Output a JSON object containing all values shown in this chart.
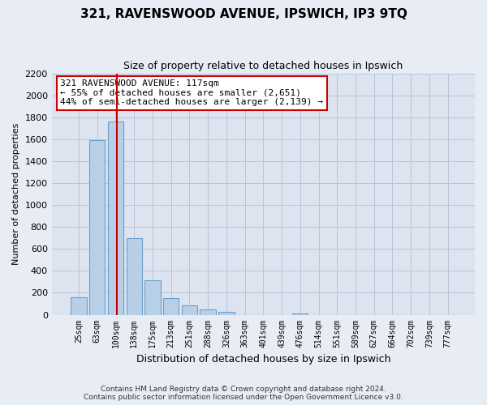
{
  "title": "321, RAVENSWOOD AVENUE, IPSWICH, IP3 9TQ",
  "subtitle": "Size of property relative to detached houses in Ipswich",
  "xlabel": "Distribution of detached houses by size in Ipswich",
  "ylabel": "Number of detached properties",
  "bar_labels": [
    "25sqm",
    "63sqm",
    "100sqm",
    "138sqm",
    "175sqm",
    "213sqm",
    "251sqm",
    "288sqm",
    "326sqm",
    "363sqm",
    "401sqm",
    "439sqm",
    "476sqm",
    "514sqm",
    "551sqm",
    "589sqm",
    "627sqm",
    "664sqm",
    "702sqm",
    "739sqm",
    "777sqm"
  ],
  "bar_values": [
    160,
    1590,
    1760,
    700,
    315,
    155,
    85,
    50,
    25,
    0,
    0,
    0,
    15,
    0,
    0,
    0,
    0,
    0,
    0,
    0,
    0
  ],
  "bar_color": "#b8cfe8",
  "bar_edge_color": "#6a9fcb",
  "vline_x_index": 2.075,
  "vline_color": "#cc0000",
  "annotation_text": "321 RAVENSWOOD AVENUE: 117sqm\n← 55% of detached houses are smaller (2,651)\n44% of semi-detached houses are larger (2,139) →",
  "annotation_box_color": "white",
  "annotation_box_edge": "#cc0000",
  "ylim": [
    0,
    2200
  ],
  "yticks": [
    0,
    200,
    400,
    600,
    800,
    1000,
    1200,
    1400,
    1600,
    1800,
    2000,
    2200
  ],
  "footnote": "Contains HM Land Registry data © Crown copyright and database right 2024.\nContains public sector information licensed under the Open Government Licence v3.0.",
  "bg_color": "#e8ecf5",
  "plot_bg_color": "#dde4f0",
  "grid_color": "#b8c4d8"
}
